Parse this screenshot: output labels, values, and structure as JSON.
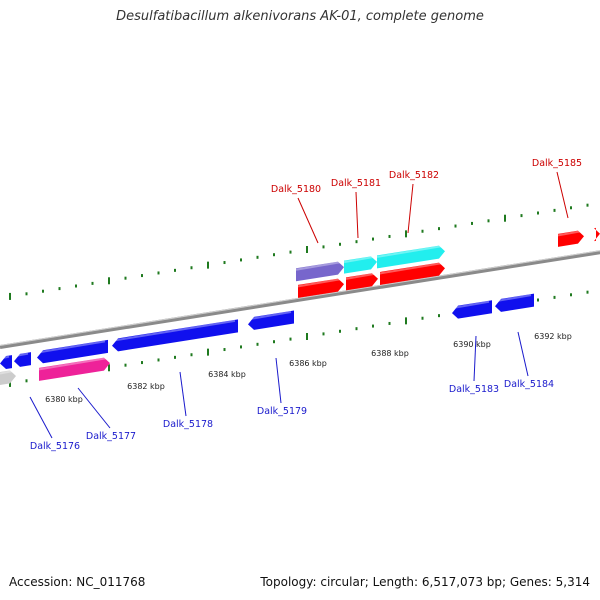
{
  "title": "Desulfatibacillum alkenivorans AK-01, complete genome",
  "footer": {
    "accession": "Accession: NC_011768",
    "summary": "Topology: circular; Length: 6,517,073 bp; Genes: 5,314"
  },
  "colors": {
    "backbone": "#8a8a8a",
    "tick": "#1f7a1f",
    "forward_label": "#cc0000",
    "reverse_label": "#1a1acc",
    "gene_red": "#ff0000",
    "gene_blue": "#1010ee",
    "gene_cyan": "#22eeee",
    "gene_purple": "#7766cc",
    "gene_pink": "#ee2299",
    "gene_grey": "#cccccc"
  },
  "kbp_labels": [
    "6380 kbp",
    "6382 kbp",
    "6384 kbp",
    "6386 kbp",
    "6388 kbp",
    "6390 kbp",
    "6392 kbp"
  ],
  "forward_genes": [
    "Dalk_5180",
    "Dalk_5181",
    "Dalk_5182",
    "Dalk_5185"
  ],
  "reverse_genes": [
    "Dalk_5176",
    "Dalk_5177",
    "Dalk_5178",
    "Dalk_5179",
    "Dalk_5183",
    "Dalk_5184"
  ]
}
